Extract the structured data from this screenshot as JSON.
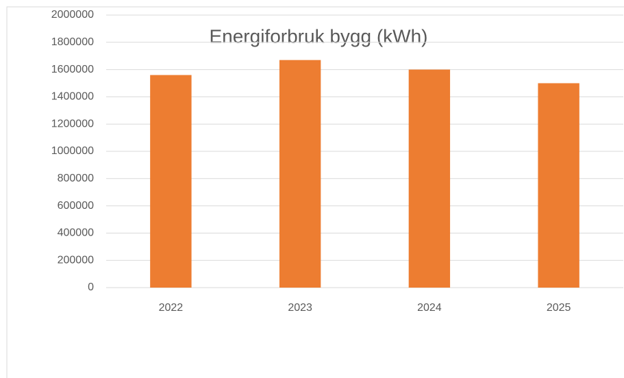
{
  "chart_data": {
    "type": "bar",
    "title": "Energiforbruk bygg (kWh)",
    "categories": [
      "2022",
      "2023",
      "2024",
      "2025"
    ],
    "values": [
      1560000,
      1670000,
      1600000,
      1500000
    ],
    "color": "#ed7d31",
    "ylim": [
      0,
      2000000
    ],
    "yticks": [
      0,
      200000,
      400000,
      600000,
      800000,
      1000000,
      1200000,
      1400000,
      1600000,
      1800000,
      2000000
    ],
    "grid": true
  }
}
